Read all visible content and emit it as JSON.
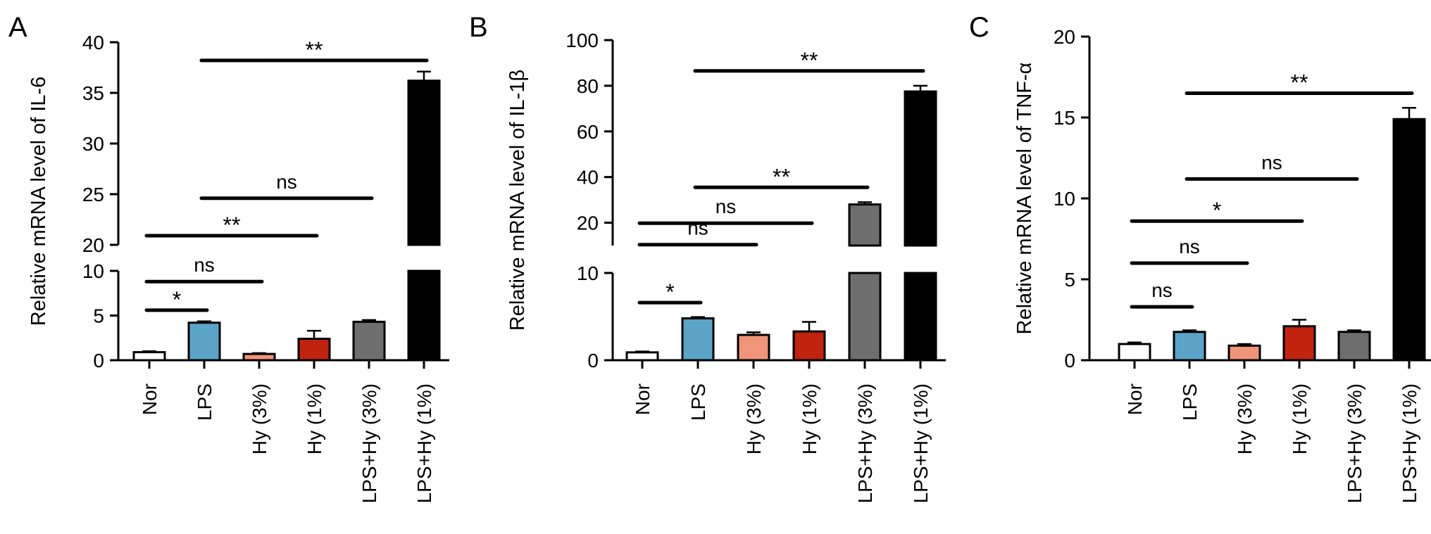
{
  "chart_data": [
    {
      "panel": "A",
      "type": "bar",
      "ylabel": "Relative mRNA level of IL-6",
      "axis_break": true,
      "ylim_lower": [
        0,
        10
      ],
      "ylim_upper": [
        20,
        40
      ],
      "yticks_lower": [
        "0",
        "5",
        "10"
      ],
      "yticks_upper": [
        "20",
        "25",
        "30",
        "35",
        "40"
      ],
      "categories": [
        "Nor",
        "LPS",
        "Hy (3%)",
        "Hy (1%)",
        "LPS+Hy (3%)",
        "LPS+Hy (1%)"
      ],
      "values": [
        0.9,
        4.2,
        0.7,
        2.4,
        4.3,
        36.2
      ],
      "errors": [
        0.1,
        0.15,
        0.1,
        0.9,
        0.2,
        0.9
      ],
      "colors": [
        "#ffffff",
        "#5ba4c8",
        "#f0947a",
        "#c0230f",
        "#6e6e6e",
        "#000000"
      ],
      "comparisons": [
        {
          "from": 0,
          "to": 1,
          "label": "*",
          "y": 5.6
        },
        {
          "from": 0,
          "to": 2,
          "label": "ns",
          "y": 8.8
        },
        {
          "from": 0,
          "to": 3,
          "label": "**",
          "y": 20.9
        },
        {
          "from": 1,
          "to": 4,
          "label": "ns",
          "y": 24.6
        },
        {
          "from": 1,
          "to": 5,
          "label": "**",
          "y": 38.2
        }
      ]
    },
    {
      "panel": "B",
      "type": "bar",
      "ylabel": "Relative mRNA level of IL-1β",
      "axis_break": true,
      "ylim_lower": [
        0,
        10
      ],
      "ylim_upper": [
        10,
        100
      ],
      "yticks_lower": [
        "0",
        "10"
      ],
      "yticks_upper": [
        "20",
        "40",
        "60",
        "80",
        "100"
      ],
      "categories": [
        "Nor",
        "LPS",
        "Hy (3%)",
        "Hy (1%)",
        "LPS+Hy (3%)",
        "LPS+Hy (1%)"
      ],
      "values": [
        0.9,
        4.8,
        2.9,
        3.3,
        28.0,
        77.5
      ],
      "errors": [
        0.1,
        0.15,
        0.3,
        1.1,
        1.0,
        2.5
      ],
      "colors": [
        "#ffffff",
        "#5ba4c8",
        "#f0947a",
        "#c0230f",
        "#6e6e6e",
        "#000000"
      ],
      "comparisons": [
        {
          "from": 0,
          "to": 1,
          "label": "*",
          "y": 6.6
        },
        {
          "from": 0,
          "to": 2,
          "label": "ns",
          "y": 10.4
        },
        {
          "from": 0,
          "to": 3,
          "label": "ns",
          "y": 19.8
        },
        {
          "from": 1,
          "to": 4,
          "label": "**",
          "y": 35.5
        },
        {
          "from": 1,
          "to": 5,
          "label": "**",
          "y": 86.5
        }
      ]
    },
    {
      "panel": "C",
      "type": "bar",
      "ylabel": "Relative mRNA level of TNF-α",
      "axis_break": false,
      "ylim": [
        0,
        20
      ],
      "yticks": [
        "0",
        "5",
        "10",
        "15",
        "20"
      ],
      "categories": [
        "Nor",
        "LPS",
        "Hy (3%)",
        "Hy (1%)",
        "LPS+Hy (3%)",
        "LPS+Hy (1%)"
      ],
      "values": [
        1.0,
        1.75,
        0.9,
        2.1,
        1.75,
        14.9
      ],
      "errors": [
        0.1,
        0.1,
        0.1,
        0.4,
        0.1,
        0.7
      ],
      "colors": [
        "#ffffff",
        "#5ba4c8",
        "#f0947a",
        "#c0230f",
        "#6e6e6e",
        "#000000"
      ],
      "comparisons": [
        {
          "from": 0,
          "to": 1,
          "label": "ns",
          "y": 3.3
        },
        {
          "from": 0,
          "to": 2,
          "label": "ns",
          "y": 6.0
        },
        {
          "from": 0,
          "to": 3,
          "label": "*",
          "y": 8.6
        },
        {
          "from": 1,
          "to": 4,
          "label": "ns",
          "y": 11.2
        },
        {
          "from": 1,
          "to": 5,
          "label": "**",
          "y": 16.5
        }
      ]
    }
  ]
}
